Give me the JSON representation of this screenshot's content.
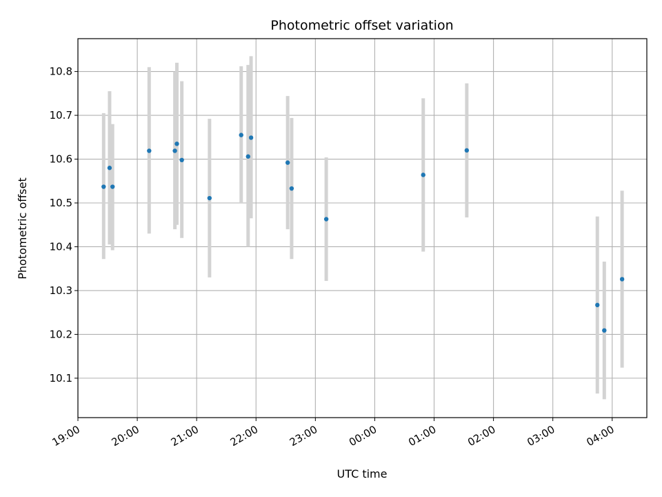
{
  "chart_data": {
    "type": "scatter",
    "title": "Photometric offset variation",
    "xlabel": "UTC time",
    "ylabel": "Photometric offset",
    "grid": true,
    "x_axis_kind": "time",
    "x_ticks": [
      "19:00",
      "20:00",
      "21:00",
      "22:00",
      "23:00",
      "00:00",
      "01:00",
      "02:00",
      "03:00",
      "04:00"
    ],
    "xlim": [
      "19:00",
      "04:35"
    ],
    "ylim": [
      10.01,
      10.875
    ],
    "y_ticks": [
      10.1,
      10.2,
      10.3,
      10.4,
      10.5,
      10.6,
      10.7,
      10.8
    ],
    "colors": {
      "points": "#1f77b4",
      "errorbars": "#d3d3d3",
      "grid": "#b0b0b0"
    },
    "series": [
      {
        "points": [
          {
            "x": "19:26",
            "y": 10.537,
            "ylow": 10.372,
            "yhigh": 10.705
          },
          {
            "x": "19:32",
            "y": 10.58,
            "ylow": 10.405,
            "yhigh": 10.755
          },
          {
            "x": "19:35",
            "y": 10.537,
            "ylow": 10.392,
            "yhigh": 10.68
          },
          {
            "x": "20:12",
            "y": 10.619,
            "ylow": 10.43,
            "yhigh": 10.81
          },
          {
            "x": "20:38",
            "y": 10.619,
            "ylow": 10.44,
            "yhigh": 10.8
          },
          {
            "x": "20:40",
            "y": 10.635,
            "ylow": 10.45,
            "yhigh": 10.82
          },
          {
            "x": "20:45",
            "y": 10.598,
            "ylow": 10.42,
            "yhigh": 10.778
          },
          {
            "x": "21:13",
            "y": 10.511,
            "ylow": 10.33,
            "yhigh": 10.692
          },
          {
            "x": "21:45",
            "y": 10.655,
            "ylow": 10.5,
            "yhigh": 10.812
          },
          {
            "x": "21:52",
            "y": 10.606,
            "ylow": 10.4,
            "yhigh": 10.815
          },
          {
            "x": "21:55",
            "y": 10.649,
            "ylow": 10.465,
            "yhigh": 10.835
          },
          {
            "x": "22:32",
            "y": 10.592,
            "ylow": 10.44,
            "yhigh": 10.744
          },
          {
            "x": "22:36",
            "y": 10.533,
            "ylow": 10.372,
            "yhigh": 10.694
          },
          {
            "x": "23:11",
            "y": 10.463,
            "ylow": 10.322,
            "yhigh": 10.604
          },
          {
            "x": "00:49",
            "y": 10.564,
            "ylow": 10.389,
            "yhigh": 10.739
          },
          {
            "x": "01:33",
            "y": 10.62,
            "ylow": 10.467,
            "yhigh": 10.773
          },
          {
            "x": "03:45",
            "y": 10.267,
            "ylow": 10.065,
            "yhigh": 10.469
          },
          {
            "x": "03:52",
            "y": 10.209,
            "ylow": 10.052,
            "yhigh": 10.366
          },
          {
            "x": "04:10",
            "y": 10.326,
            "ylow": 10.124,
            "yhigh": 10.528
          }
        ]
      }
    ]
  }
}
